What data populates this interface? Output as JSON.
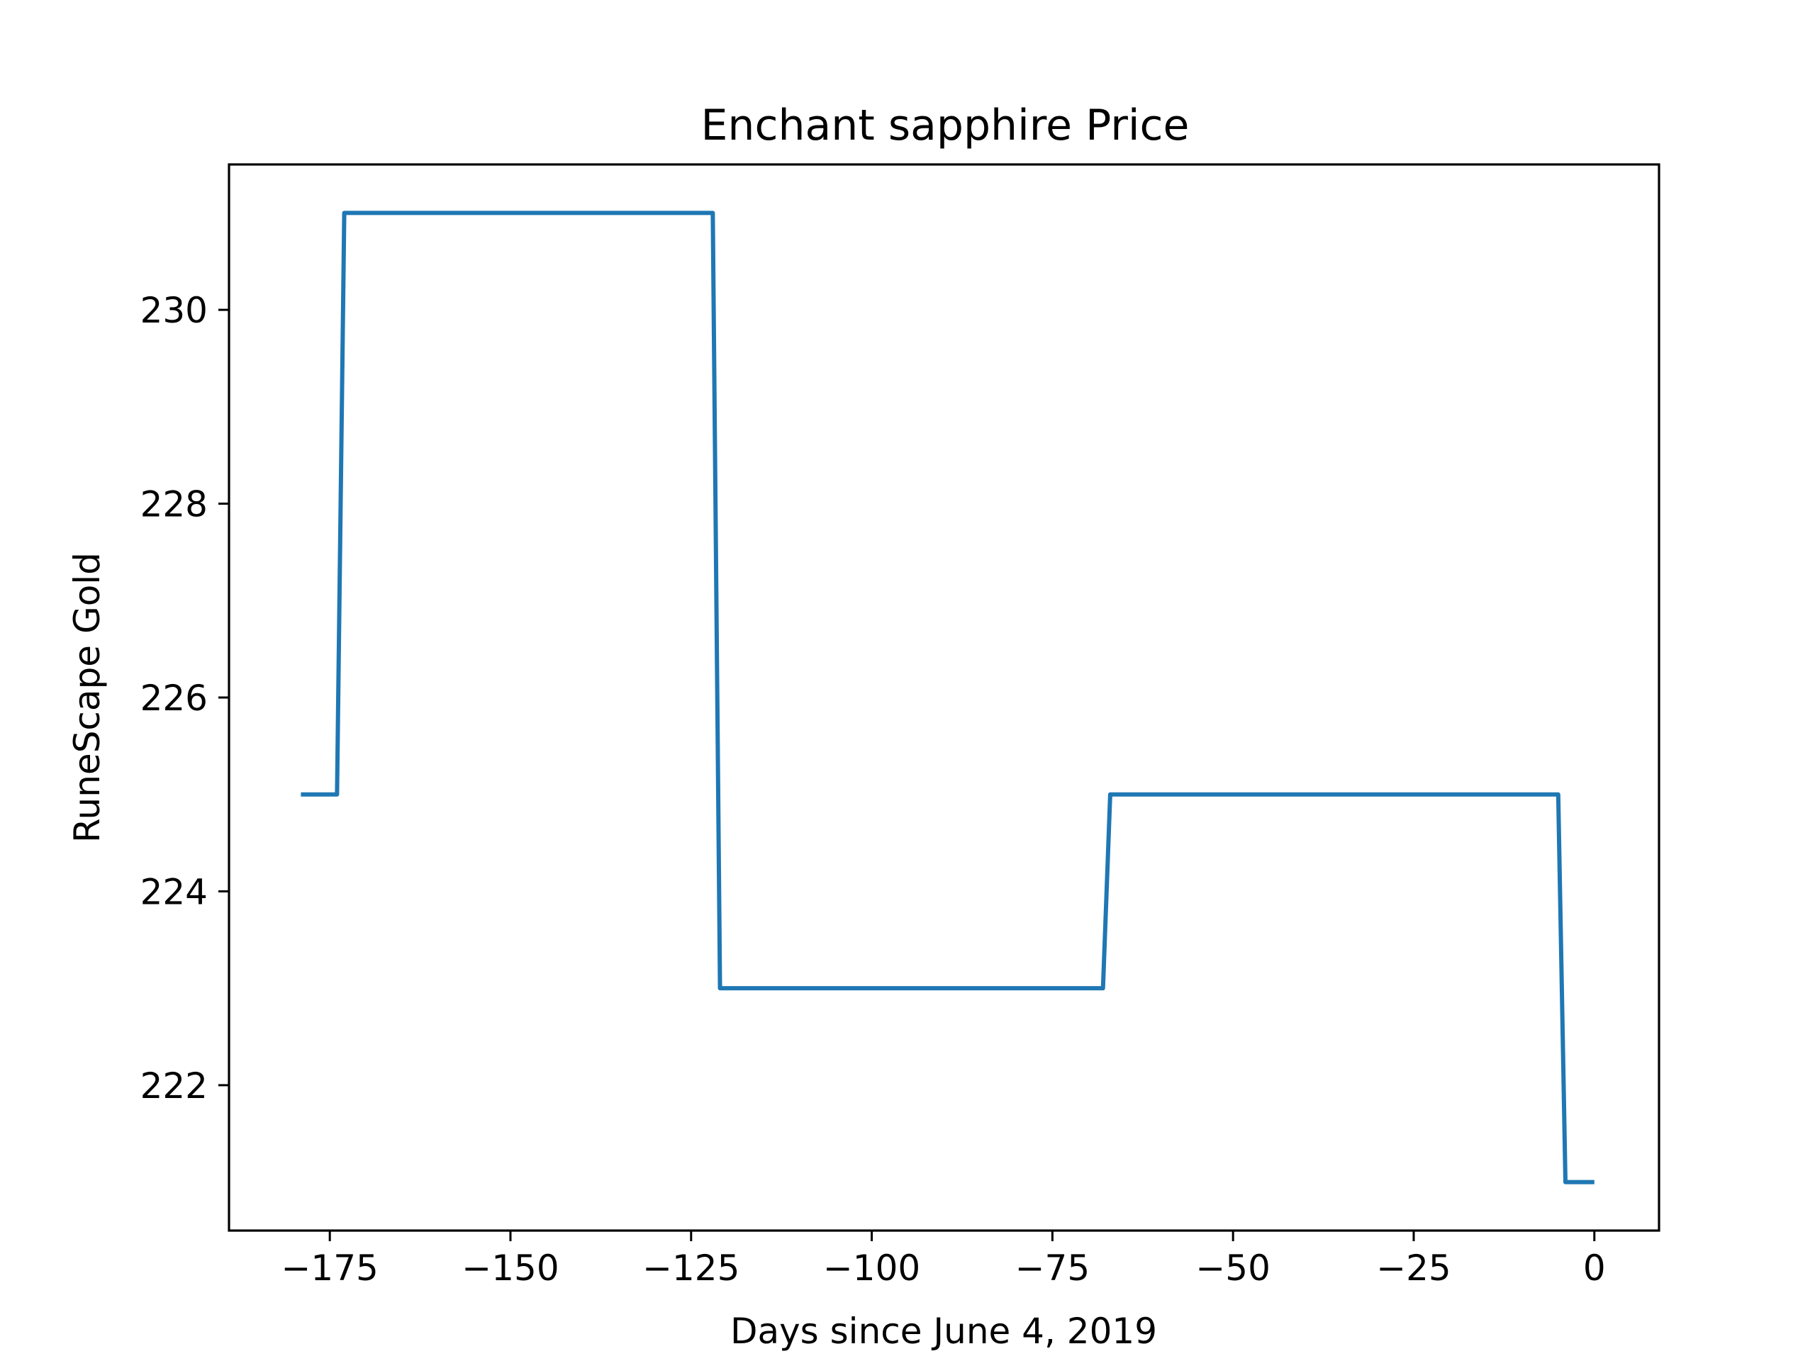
{
  "chart_data": {
    "type": "line",
    "title": "Enchant sapphire Price",
    "xlabel": "Days since June 4, 2019",
    "ylabel": "RuneScape Gold",
    "xlim": [
      -188.95,
      8.95
    ],
    "ylim": [
      220.5,
      231.5
    ],
    "xticks": [
      {
        "value": -175,
        "label": "−175"
      },
      {
        "value": -150,
        "label": "−150"
      },
      {
        "value": -125,
        "label": "−125"
      },
      {
        "value": -100,
        "label": "−100"
      },
      {
        "value": -75,
        "label": "−75"
      },
      {
        "value": -50,
        "label": "−50"
      },
      {
        "value": -25,
        "label": "−25"
      },
      {
        "value": 0,
        "label": "0"
      }
    ],
    "yticks": [
      {
        "value": 222,
        "label": "222"
      },
      {
        "value": 224,
        "label": "224"
      },
      {
        "value": 226,
        "label": "226"
      },
      {
        "value": 228,
        "label": "228"
      },
      {
        "value": 230,
        "label": "230"
      }
    ],
    "grid": false,
    "series": [
      {
        "color": "#1f77b4",
        "x": [
          -179,
          -174,
          -173,
          -122,
          -121,
          -68,
          -67,
          -5,
          -4,
          0
        ],
        "y": [
          225,
          225,
          231,
          231,
          223,
          223,
          225,
          225,
          221,
          221
        ]
      }
    ]
  }
}
